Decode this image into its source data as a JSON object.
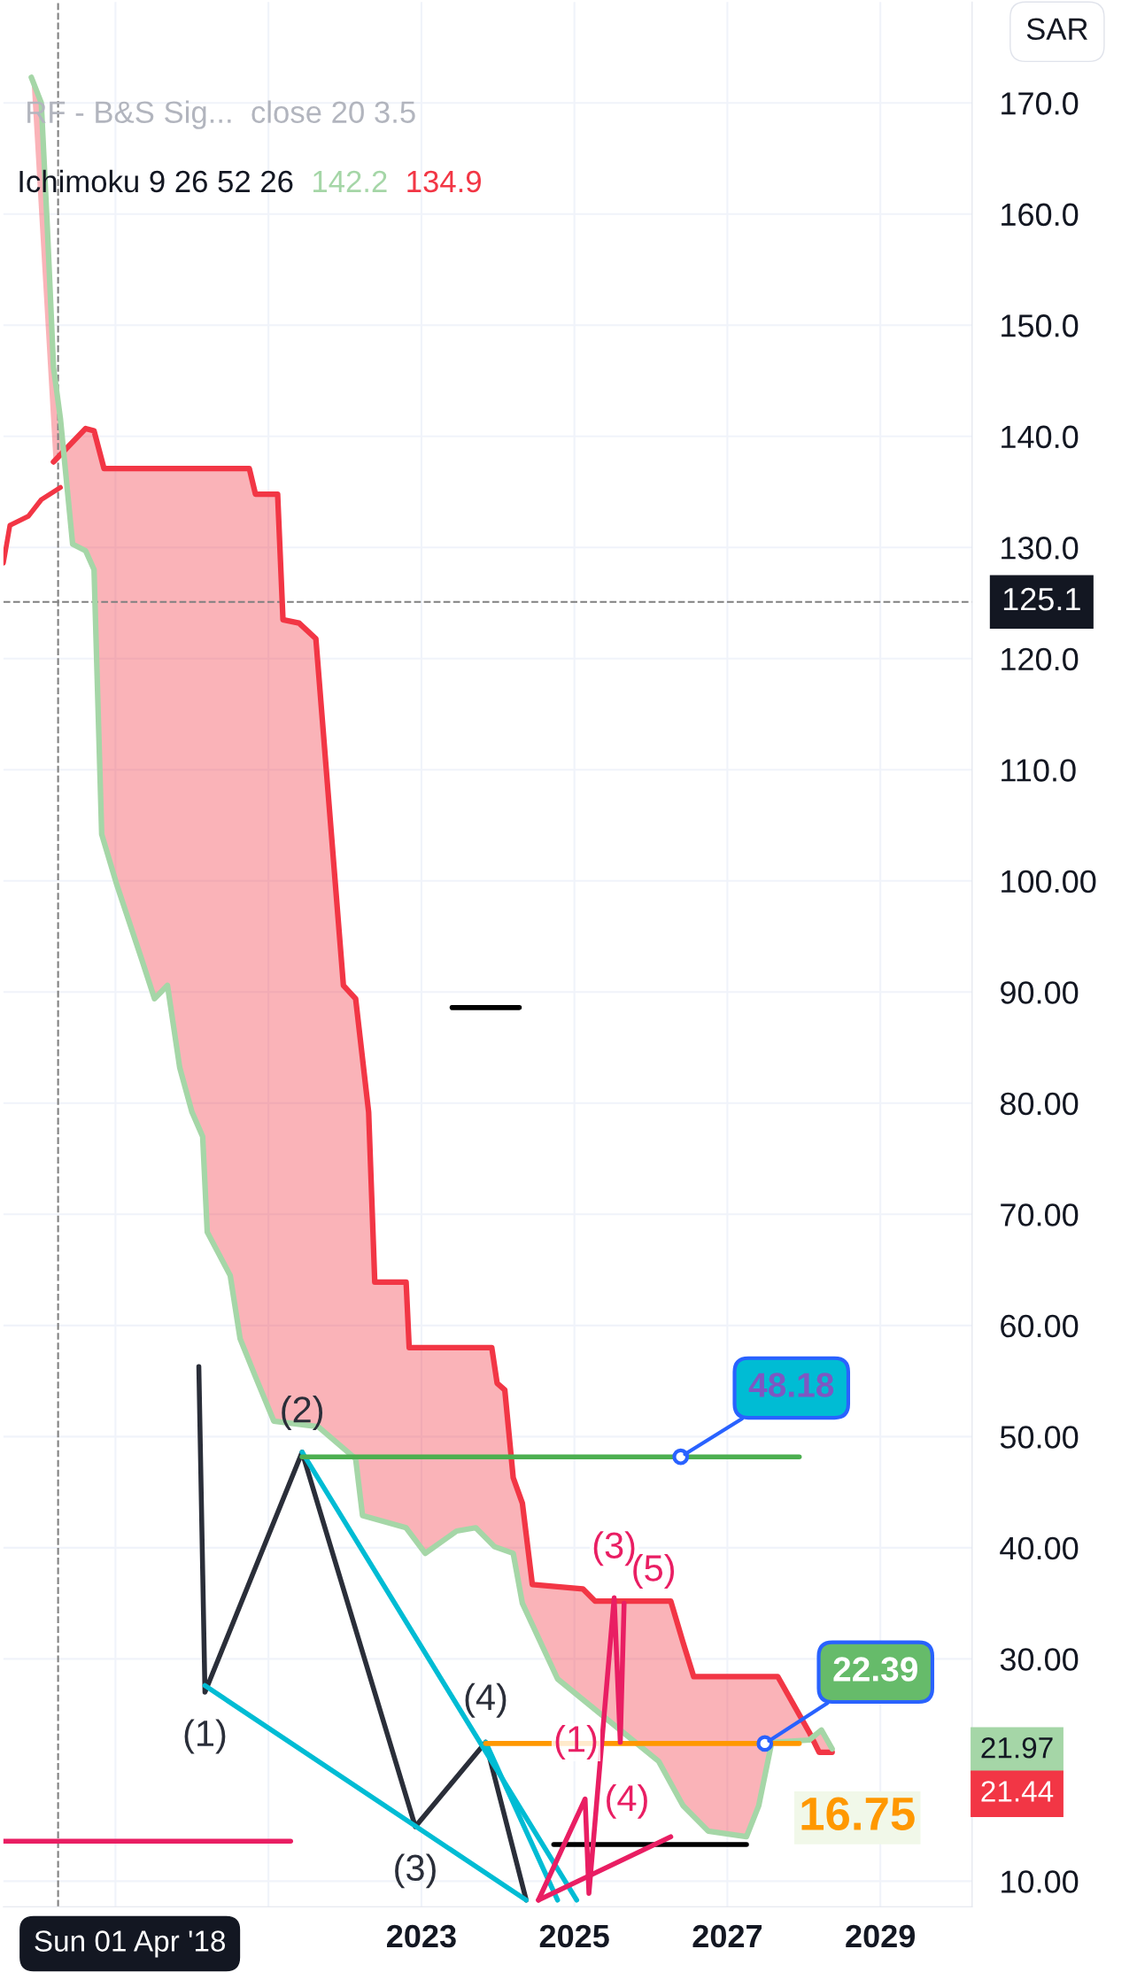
{
  "chart_data": {
    "type": "line",
    "xlim": [
      2017.535,
      2030.2
    ],
    "ylim": [
      7.7,
      179.08
    ],
    "xticks": [
      {
        "value": 2019,
        "label": null
      },
      {
        "value": 2021,
        "label": null
      },
      2023,
      2025,
      2027,
      2029
    ],
    "yticks": [
      {
        "value": 10,
        "label": "10.00"
      },
      {
        "value": 30,
        "label": "30.00"
      },
      {
        "value": 40,
        "label": "40.00"
      },
      {
        "value": 50,
        "label": "50.00"
      },
      {
        "value": 60,
        "label": "60.00"
      },
      {
        "value": 70,
        "label": "70.00"
      },
      {
        "value": 80,
        "label": "80.00"
      },
      {
        "value": 90,
        "label": "90.00"
      },
      {
        "value": 100,
        "label": "100.00"
      },
      {
        "value": 110,
        "label": "110.0"
      },
      {
        "value": 120,
        "label": "120.0"
      },
      {
        "value": 130,
        "label": "130.0"
      },
      {
        "value": 140,
        "label": "140.0"
      },
      {
        "value": 150,
        "label": "150.0"
      },
      {
        "value": 160,
        "label": "160.0"
      },
      {
        "value": 170,
        "label": "170.0"
      }
    ],
    "grid": true,
    "series": [
      {
        "color": "#f23645",
        "x": [
          2018.19,
          2018.61,
          2018.72,
          2018.85,
          2020.75,
          2020.83,
          2021.12,
          2021.19,
          2021.4,
          2021.62,
          2021.98,
          2022.14,
          2022.31,
          2022.39,
          2022.8,
          2022.84,
          2023.92,
          2023.99,
          2024.09,
          2024.2,
          2024.32,
          2024.45,
          2025.11,
          2025.27,
          2026.26,
          2026.42,
          2026.56,
          2027.66,
          2028.07,
          2028.2,
          2028.37
        ],
        "values": [
          137.7,
          140.7,
          140.5,
          137.1,
          137.1,
          134.8,
          134.8,
          123.5,
          123.2,
          121.8,
          90.6,
          89.4,
          79.2,
          63.9,
          63.9,
          58.0,
          58.0,
          54.8,
          54.2,
          46.3,
          44.0,
          36.7,
          36.3,
          35.2,
          35.2,
          31.5,
          28.4,
          28.4,
          23.4,
          21.6,
          21.6
        ]
      },
      {
        "color": "#a5d6a7",
        "x": [
          2017.9,
          2018.03,
          2018.11,
          2018.19,
          2018.28,
          2018.44,
          2018.61,
          2018.72,
          2018.82,
          2019.02,
          2019.35,
          2019.51,
          2019.68,
          2019.84,
          2020.0,
          2020.14,
          2020.2,
          2020.5,
          2020.63,
          2020.83,
          2021.07,
          2021.65,
          2022.14,
          2022.23,
          2022.8,
          2023.05,
          2023.46,
          2023.71,
          2023.955,
          2024.2,
          2024.32,
          2024.78,
          2025.6,
          2026.1,
          2026.42,
          2026.75,
          2027.25,
          2027.41,
          2027.58,
          2028.07,
          2028.23,
          2028.37
        ],
        "values": [
          172.3,
          170.0,
          158.7,
          146.2,
          141.6,
          130.3,
          129.7,
          128.0,
          104.2,
          99.6,
          92.8,
          89.4,
          90.6,
          83.2,
          79.2,
          77.0,
          68.4,
          64.5,
          58.8,
          55.4,
          51.4,
          50.9,
          48.0,
          42.9,
          41.8,
          39.5,
          41.5,
          41.8,
          40.1,
          39.5,
          35.0,
          28.2,
          23.6,
          20.8,
          16.8,
          14.5,
          14.0,
          16.8,
          22.5,
          22.7,
          23.6,
          21.9
        ]
      },
      {
        "color": "#f23645",
        "x": [
          2017.535,
          2017.62,
          2017.86,
          2018.03,
          2018.28
        ],
        "values": [
          128.6,
          132.0,
          132.8,
          134.3,
          135.4
        ]
      },
      {
        "color": "#2a2e39",
        "x": [
          2020.09,
          2020.17,
          2021.44,
          2022.92,
          2023.84,
          2024.37
        ],
        "values": [
          56.3,
          27.0,
          48.6,
          14.9,
          22.5,
          8.3
        ]
      },
      {
        "color": "#00bcd4",
        "x": [
          2020.17,
          2024.37
        ],
        "values": [
          27.6,
          8.3
        ]
      },
      {
        "color": "#00bcd4",
        "x": [
          2021.44,
          2025.03
        ],
        "values": [
          48.6,
          8.3
        ]
      },
      {
        "color": "#00bcd4",
        "x": [
          2023.84,
          2024.78
        ],
        "values": [
          22.5,
          8.3
        ]
      },
      {
        "color": "#ff9800",
        "x": [
          2023.84,
          2027.94
        ],
        "values": [
          22.39,
          22.39
        ]
      },
      {
        "color": "#4caf50",
        "x": [
          2021.44,
          2027.94
        ],
        "values": [
          48.18,
          48.18
        ]
      },
      {
        "color": "#000000",
        "x": [
          2024.73,
          2027.25
        ],
        "values": [
          13.3,
          13.3
        ]
      },
      {
        "color": "#000000",
        "x": [
          2023.4,
          2024.28
        ],
        "values": [
          88.6,
          88.6
        ]
      },
      {
        "color": "#e91e63",
        "x": [
          2017.535,
          2021.29
        ],
        "values": [
          13.6,
          13.6
        ]
      },
      {
        "color": "#e91e63",
        "x": [
          2024.53,
          2025.14,
          2025.19,
          2025.52,
          2025.6,
          2025.65
        ],
        "values": [
          8.3,
          17.4,
          8.9,
          35.5,
          22.5,
          35.0
        ]
      },
      {
        "color": "#e91e63",
        "x": [
          2024.53,
          2026.26
        ],
        "values": [
          8.3,
          14.0
        ]
      },
      {
        "type": "scatter",
        "color": "#2962ff",
        "x": [
          2026.39,
          2027.49
        ],
        "values": [
          48.18,
          22.39
        ]
      }
    ],
    "ref_lines": [
      {
        "axis": "y",
        "value": 125.1,
        "label": "125.1",
        "color": "#808080",
        "line_style": "dashed"
      },
      {
        "axis": "x",
        "value": 2018.25,
        "label": "Sun 01 Apr '18",
        "color": "#808080",
        "line_style": "dashed"
      }
    ],
    "annotations": [
      "RF - B&S Sig...  close 20 3.5",
      "Ichimoku 9 26 52 26",
      "142.2",
      "134.9",
      "SAR",
      "16.75",
      "21.97",
      "21.44",
      {
        "text": "(1)",
        "x": 2020.17,
        "y": 27.0
      },
      {
        "text": "(2)",
        "x": 2021.44,
        "y": 48.6
      },
      {
        "text": "(3)",
        "x": 2022.92,
        "y": 14.9
      },
      {
        "text": "(4)",
        "x": 2023.84,
        "y": 22.5
      },
      {
        "text": "(3)",
        "x": 2025.52,
        "y": 35.5
      },
      {
        "text": "(5)",
        "x": 2025.65,
        "y": 35.0
      },
      {
        "text": "(1)",
        "x": 2025.6,
        "y": 22.5
      },
      {
        "text": "(4)",
        "x": 2025.14,
        "y": 17.4
      },
      {
        "text": "48.18",
        "x": 2026.39,
        "y": 48.18
      },
      {
        "text": "22.39",
        "x": 2027.49,
        "y": 22.39
      }
    ]
  }
}
